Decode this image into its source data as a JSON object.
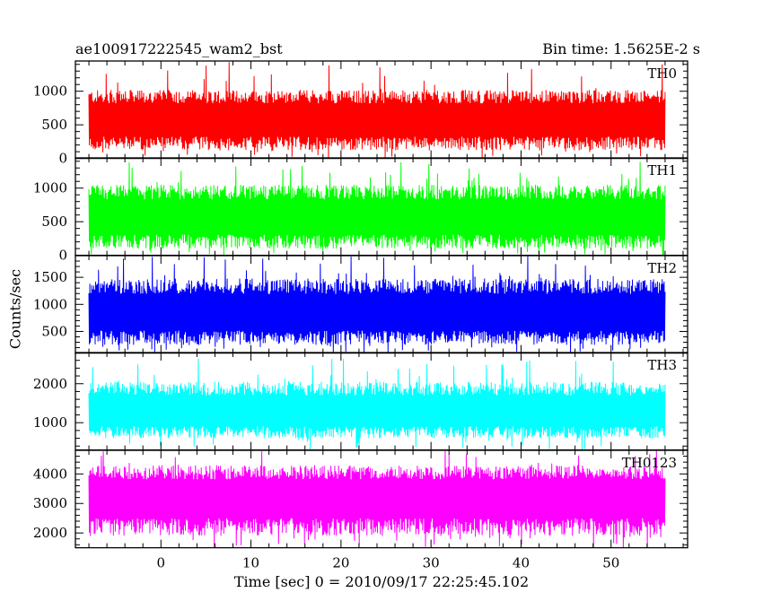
{
  "header": {
    "obs_id": "ae100917222545_wam2_bst",
    "bin_time": "Bin time: 1.5625E-2 s"
  },
  "chart_data": {
    "type": "line",
    "title": "ae100917222545_wam2_bst",
    "subtitle": "Bin time: 1.5625E-2 s",
    "xlabel": "Time [sec] 0 = 2010/09/17 22:25:45.102",
    "ylabel": "Counts/sec",
    "xlim": [
      -9.5,
      58.5
    ],
    "x_range_data": [
      -8,
      56
    ],
    "xticks": [
      0,
      10,
      20,
      30,
      40,
      50
    ],
    "panels": [
      {
        "name": "TH0",
        "color": "#ff0000",
        "ylim": [
          0,
          1450
        ],
        "yticks": [
          0,
          500,
          1000
        ],
        "mean": 575,
        "low": 120,
        "high": 1020,
        "spike": 1450
      },
      {
        "name": "TH1",
        "color": "#00ff00",
        "ylim": [
          0,
          1450
        ],
        "yticks": [
          0,
          500,
          1000
        ],
        "mean": 560,
        "low": 100,
        "high": 1050,
        "spike": 1400
      },
      {
        "name": "TH2",
        "color": "#0000ff",
        "ylim": [
          100,
          1900
        ],
        "yticks": [
          500,
          1000,
          1500
        ],
        "mean": 840,
        "low": 250,
        "high": 1480,
        "spike": 1900
      },
      {
        "name": "TH3",
        "color": "#00ffff",
        "ylim": [
          300,
          2800
        ],
        "yticks": [
          1000,
          2000
        ],
        "mean": 1280,
        "low": 600,
        "high": 2050,
        "spike": 2650
      },
      {
        "name": "TH0123",
        "color": "#ff00ff",
        "ylim": [
          1500,
          4800
        ],
        "yticks": [
          2000,
          3000,
          4000
        ],
        "mean": 3230,
        "low": 1900,
        "high": 4300,
        "spike": 4800
      }
    ]
  }
}
